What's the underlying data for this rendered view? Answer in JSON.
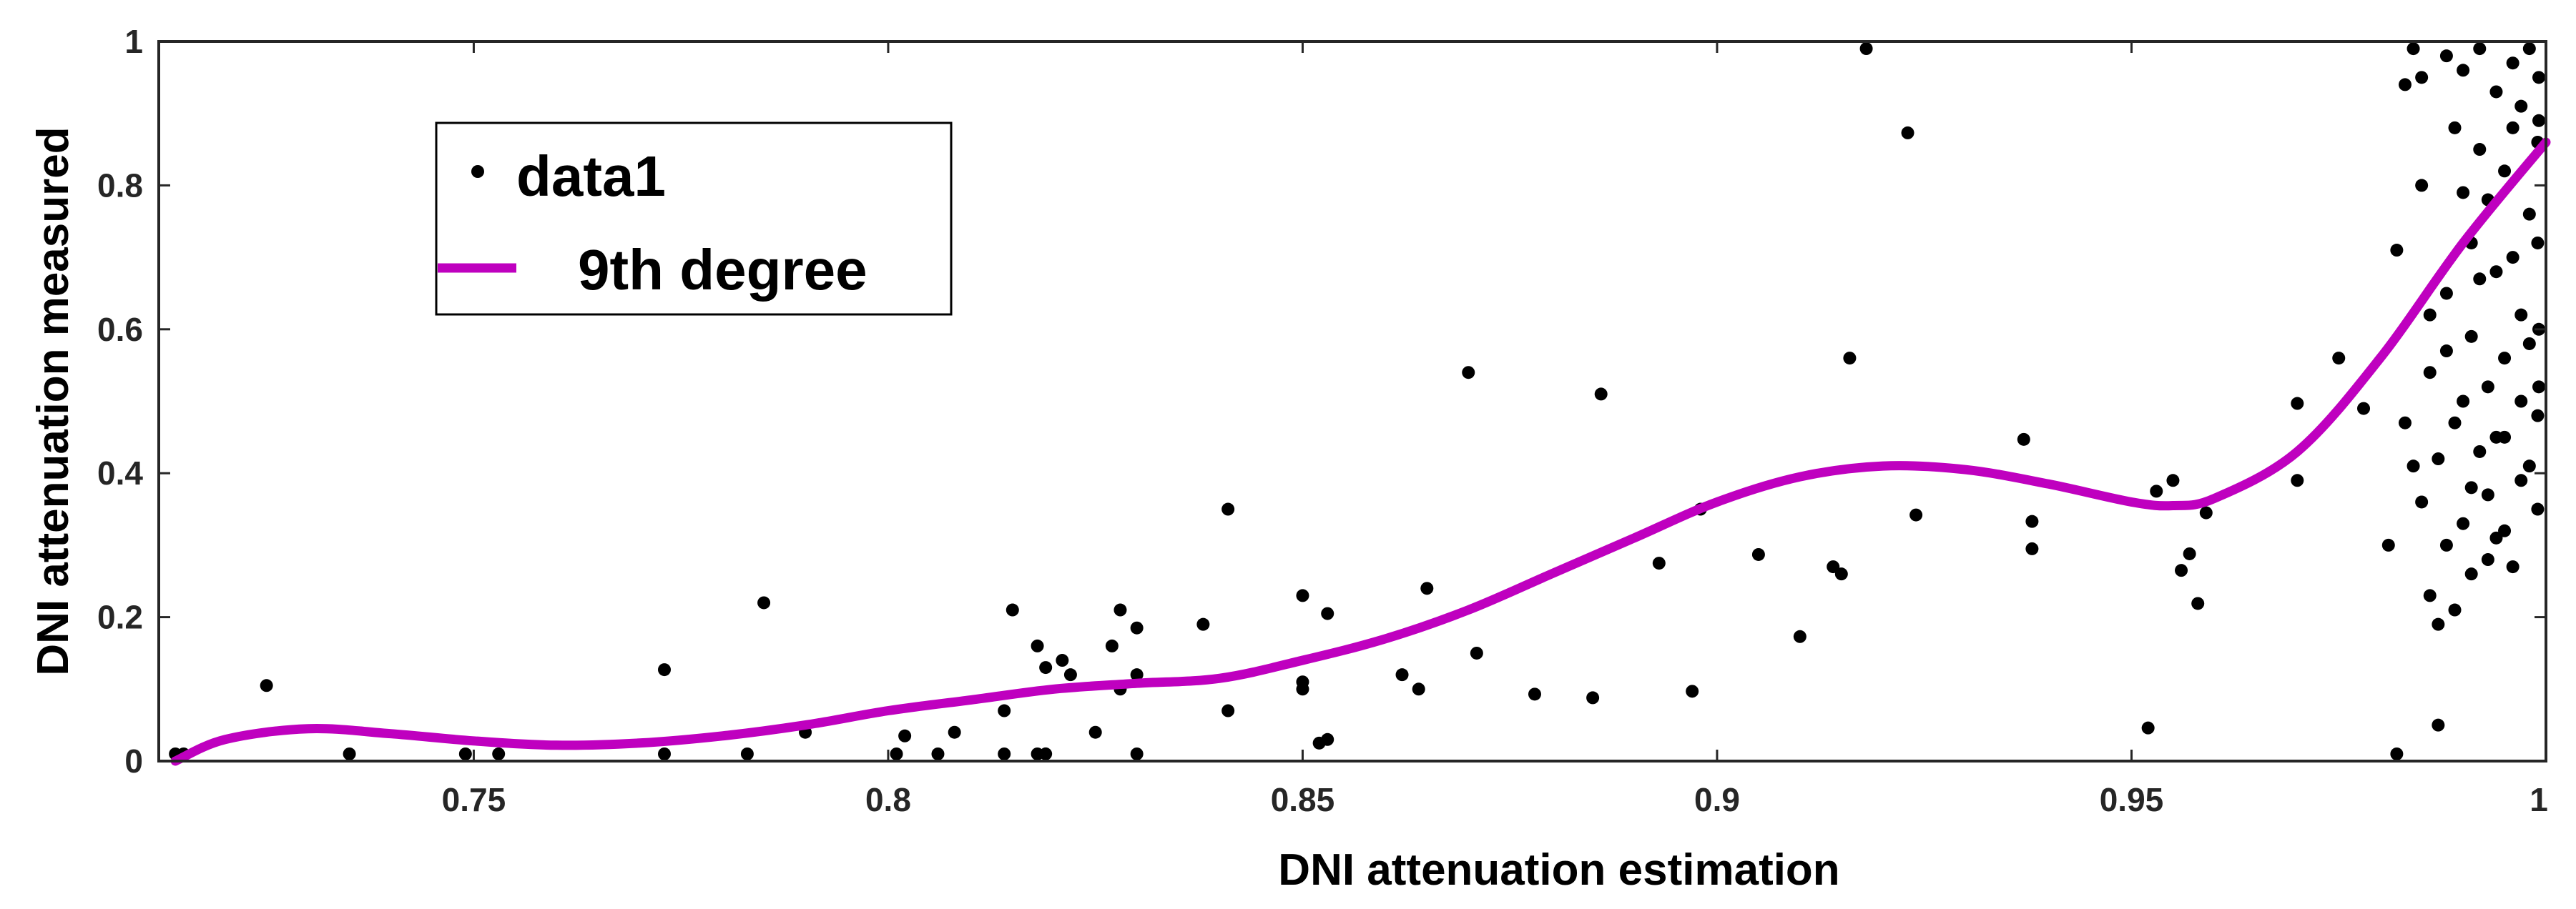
{
  "chart_data": {
    "type": "scatter",
    "xlabel": "DNI attenuation estimation",
    "ylabel": "DNI attenuation measured",
    "xlim": [
      0.712,
      1.0
    ],
    "ylim": [
      0,
      1
    ],
    "x_ticks": [
      "0.75",
      "0.8",
      "0.85",
      "0.9",
      "0.95",
      "1"
    ],
    "x_tick_values": [
      0.75,
      0.8,
      0.85,
      0.9,
      0.95,
      1.0
    ],
    "y_ticks": [
      "0",
      "0.2",
      "0.4",
      "0.6",
      "0.8",
      "1"
    ],
    "y_tick_values": [
      0,
      0.2,
      0.4,
      0.6,
      0.8,
      1.0
    ],
    "grid": false,
    "legend_position": "top-left",
    "colors": {
      "data1": "#000000",
      "fit": "#bf00bf",
      "axes": "#262626"
    },
    "series": [
      {
        "name": "data1",
        "kind": "scatter",
        "legend_label": "data1",
        "points": [
          [
            0.714,
            0.0
          ],
          [
            0.715,
            0.003
          ],
          [
            0.725,
            0.105
          ],
          [
            0.735,
            0.0
          ],
          [
            0.749,
            0.0
          ],
          [
            0.753,
            0.01
          ],
          [
            0.773,
            0.127
          ],
          [
            0.773,
            0.0
          ],
          [
            0.783,
            0.0
          ],
          [
            0.785,
            0.22
          ],
          [
            0.79,
            0.04
          ],
          [
            0.801,
            0.0
          ],
          [
            0.802,
            0.035
          ],
          [
            0.806,
            0.0
          ],
          [
            0.808,
            0.04
          ],
          [
            0.814,
            0.07
          ],
          [
            0.814,
            0.0
          ],
          [
            0.815,
            0.21
          ],
          [
            0.818,
            0.0
          ],
          [
            0.818,
            0.16
          ],
          [
            0.819,
            0.13
          ],
          [
            0.819,
            0.01
          ],
          [
            0.821,
            0.14
          ],
          [
            0.822,
            0.12
          ],
          [
            0.825,
            0.04
          ],
          [
            0.827,
            0.16
          ],
          [
            0.828,
            0.21
          ],
          [
            0.828,
            0.1
          ],
          [
            0.83,
            0.185
          ],
          [
            0.83,
            0.12
          ],
          [
            0.83,
            0.0
          ],
          [
            0.838,
            0.19
          ],
          [
            0.841,
            0.35
          ],
          [
            0.841,
            0.07
          ],
          [
            0.85,
            0.23
          ],
          [
            0.85,
            0.11
          ],
          [
            0.85,
            0.1
          ],
          [
            0.853,
            0.205
          ],
          [
            0.853,
            0.03
          ],
          [
            0.852,
            0.025
          ],
          [
            0.862,
            0.12
          ],
          [
            0.864,
            0.1
          ],
          [
            0.865,
            0.24
          ],
          [
            0.87,
            0.54
          ],
          [
            0.871,
            0.15
          ],
          [
            0.878,
            0.093
          ],
          [
            0.885,
            0.088
          ],
          [
            0.886,
            0.51
          ],
          [
            0.893,
            0.275
          ],
          [
            0.897,
            0.097
          ],
          [
            0.898,
            0.35
          ],
          [
            0.905,
            0.287
          ],
          [
            0.91,
            0.173
          ],
          [
            0.914,
            0.27
          ],
          [
            0.915,
            0.26
          ],
          [
            0.916,
            0.56
          ],
          [
            0.918,
            0.995
          ],
          [
            0.923,
            0.873
          ],
          [
            0.924,
            0.342
          ],
          [
            0.937,
            0.447
          ],
          [
            0.938,
            0.333
          ],
          [
            0.938,
            0.295
          ],
          [
            0.952,
            0.046
          ],
          [
            0.953,
            0.375
          ],
          [
            0.955,
            0.39
          ],
          [
            0.956,
            0.265
          ],
          [
            0.957,
            0.288
          ],
          [
            0.958,
            0.219
          ],
          [
            0.959,
            0.345
          ],
          [
            0.97,
            0.39
          ],
          [
            0.97,
            0.497
          ],
          [
            0.975,
            0.56
          ],
          [
            0.978,
            0.49
          ],
          [
            0.981,
            0.3
          ],
          [
            0.982,
            0.0
          ],
          [
            0.982,
            0.71
          ],
          [
            0.983,
            0.94
          ],
          [
            0.983,
            0.47
          ],
          [
            0.984,
            0.41
          ],
          [
            0.985,
            0.95
          ],
          [
            0.985,
            0.36
          ],
          [
            0.986,
            0.54
          ],
          [
            0.986,
            0.23
          ],
          [
            0.987,
            0.19
          ],
          [
            0.987,
            0.05
          ],
          [
            0.988,
            0.98
          ],
          [
            0.988,
            0.3
          ],
          [
            0.988,
            0.65
          ],
          [
            0.989,
            0.88
          ],
          [
            0.989,
            0.47
          ],
          [
            0.99,
            0.79
          ],
          [
            0.99,
            0.33
          ],
          [
            0.99,
            0.96
          ],
          [
            0.991,
            0.59
          ],
          [
            0.991,
            0.26
          ],
          [
            0.991,
            0.72
          ],
          [
            0.992,
            0.43
          ],
          [
            0.992,
            0.99
          ],
          [
            0.992,
            0.85
          ],
          [
            0.993,
            0.52
          ],
          [
            0.993,
            0.37
          ],
          [
            0.993,
            0.28
          ],
          [
            0.994,
            0.93
          ],
          [
            0.994,
            0.68
          ],
          [
            0.994,
            0.31
          ],
          [
            0.995,
            0.56
          ],
          [
            0.995,
            0.82
          ],
          [
            0.995,
            0.45
          ],
          [
            0.996,
            0.97
          ],
          [
            0.996,
            0.7
          ],
          [
            0.996,
            0.27
          ],
          [
            0.997,
            0.62
          ],
          [
            0.997,
            0.91
          ],
          [
            0.997,
            0.39
          ],
          [
            0.998,
            0.76
          ],
          [
            0.998,
            0.58
          ],
          [
            0.998,
            0.99
          ],
          [
            0.999,
            0.48
          ],
          [
            0.999,
            0.86
          ],
          [
            0.999,
            0.35
          ],
          [
            1.0,
            0.52
          ],
          [
            1.0,
            0.95
          ],
          [
            1.0,
            0.6
          ],
          [
            1.0,
            0.89
          ],
          [
            0.984,
            0.99
          ],
          [
            0.985,
            0.8
          ],
          [
            0.986,
            0.62
          ],
          [
            0.987,
            0.42
          ],
          [
            0.988,
            0.57
          ],
          [
            0.989,
            0.21
          ],
          [
            0.99,
            0.5
          ],
          [
            0.991,
            0.38
          ],
          [
            0.992,
            0.67
          ],
          [
            0.993,
            0.78
          ],
          [
            0.994,
            0.45
          ],
          [
            0.995,
            0.32
          ],
          [
            0.996,
            0.88
          ],
          [
            0.997,
            0.5
          ],
          [
            0.998,
            0.41
          ],
          [
            0.999,
            0.72
          ]
        ]
      },
      {
        "name": "9th degree",
        "kind": "line",
        "legend_label": "9th degree",
        "x": [
          0.714,
          0.72,
          0.73,
          0.74,
          0.75,
          0.76,
          0.77,
          0.78,
          0.79,
          0.8,
          0.81,
          0.82,
          0.83,
          0.84,
          0.85,
          0.86,
          0.87,
          0.88,
          0.89,
          0.9,
          0.91,
          0.92,
          0.93,
          0.94,
          0.95,
          0.955,
          0.96,
          0.97,
          0.98,
          0.99,
          1.0
        ],
        "values": [
          0.0,
          0.03,
          0.045,
          0.038,
          0.028,
          0.022,
          0.025,
          0.035,
          0.05,
          0.07,
          0.085,
          0.1,
          0.108,
          0.115,
          0.14,
          0.17,
          0.21,
          0.26,
          0.31,
          0.36,
          0.395,
          0.41,
          0.405,
          0.385,
          0.36,
          0.355,
          0.365,
          0.43,
          0.56,
          0.72,
          0.86
        ]
      }
    ]
  }
}
